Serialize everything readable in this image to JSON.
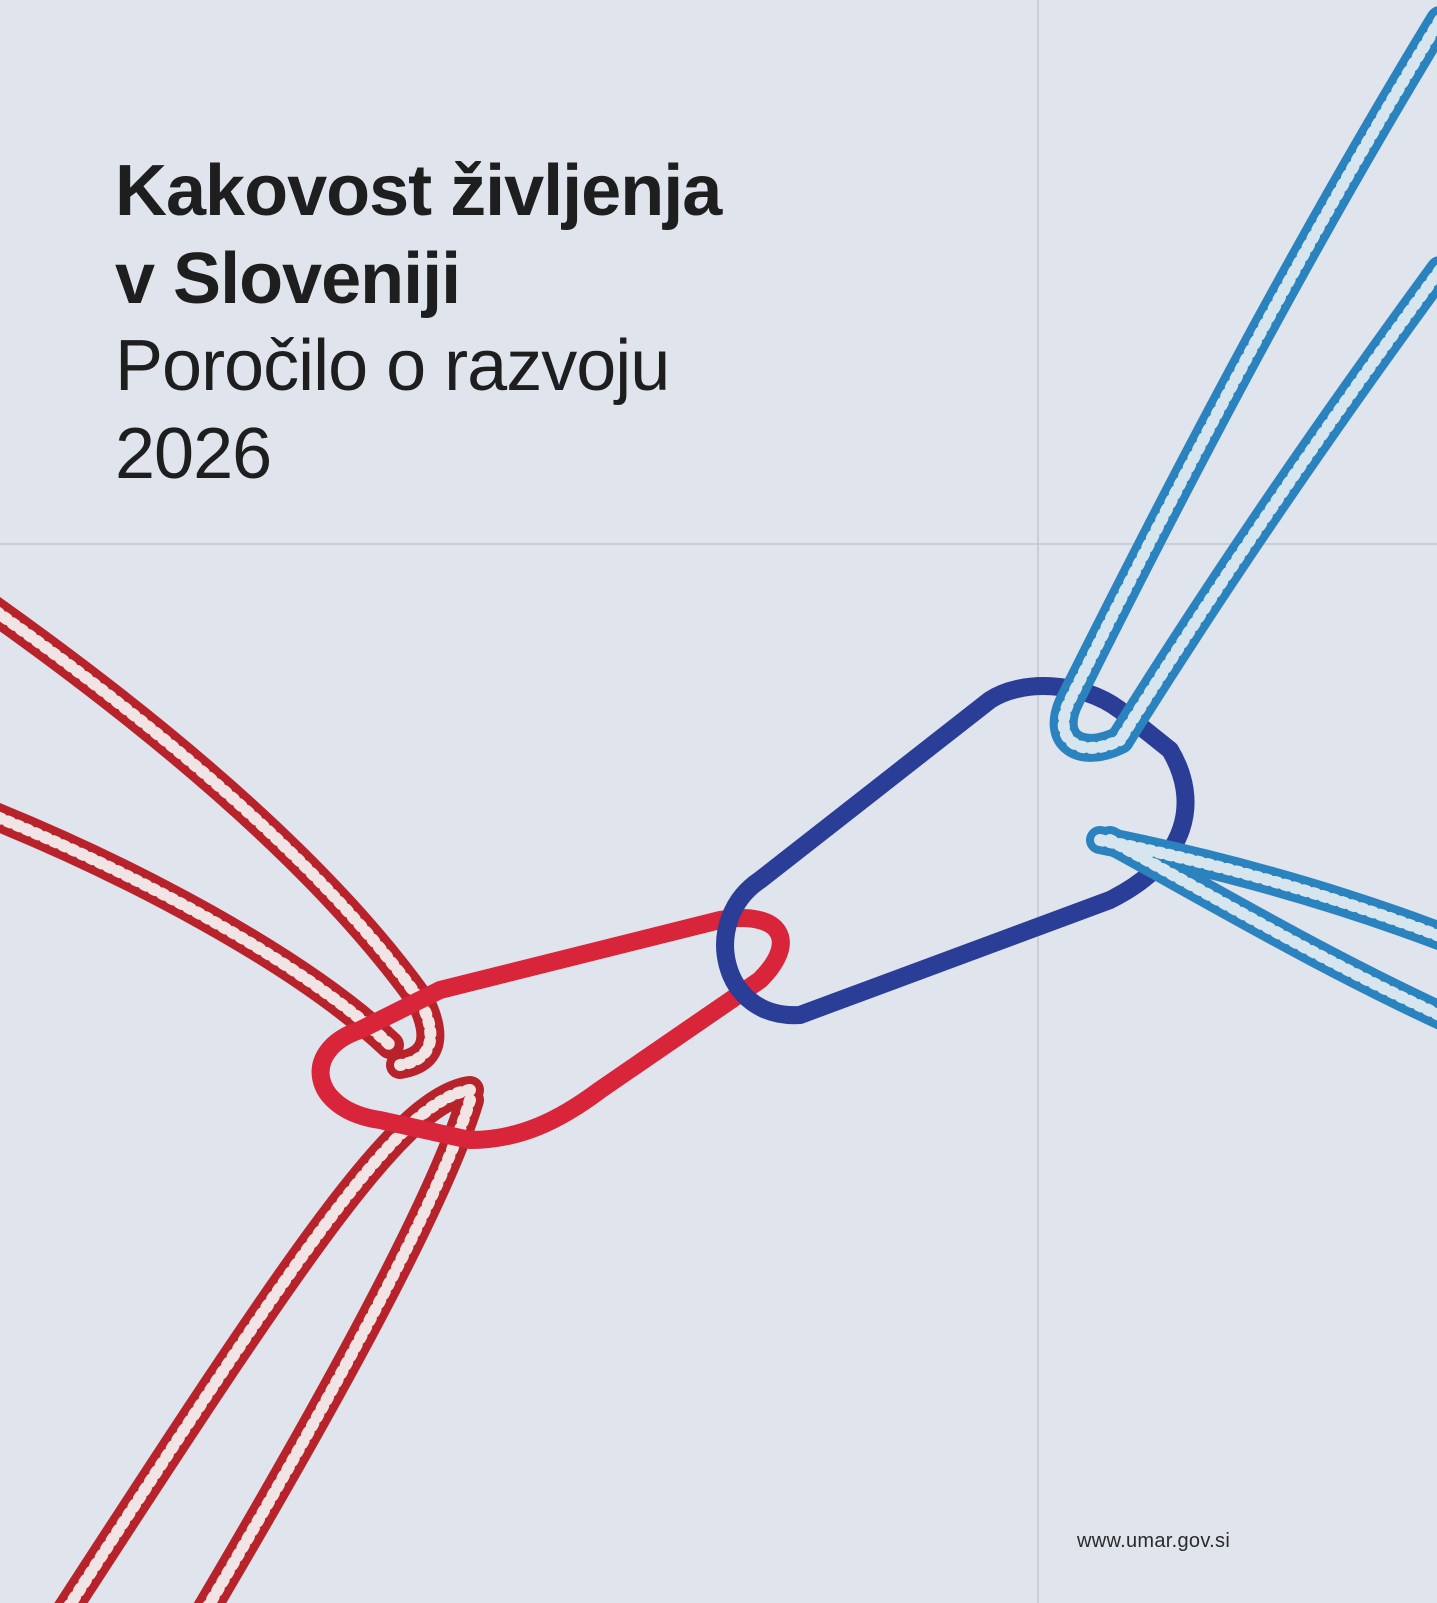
{
  "title": {
    "lines": [
      "Kakovost življenja",
      "v Sloveniji"
    ]
  },
  "subtitle": {
    "lines": [
      "Poročilo o razvoju",
      "2026"
    ]
  },
  "footer": {
    "url": "www.umar.gov.si"
  }
}
